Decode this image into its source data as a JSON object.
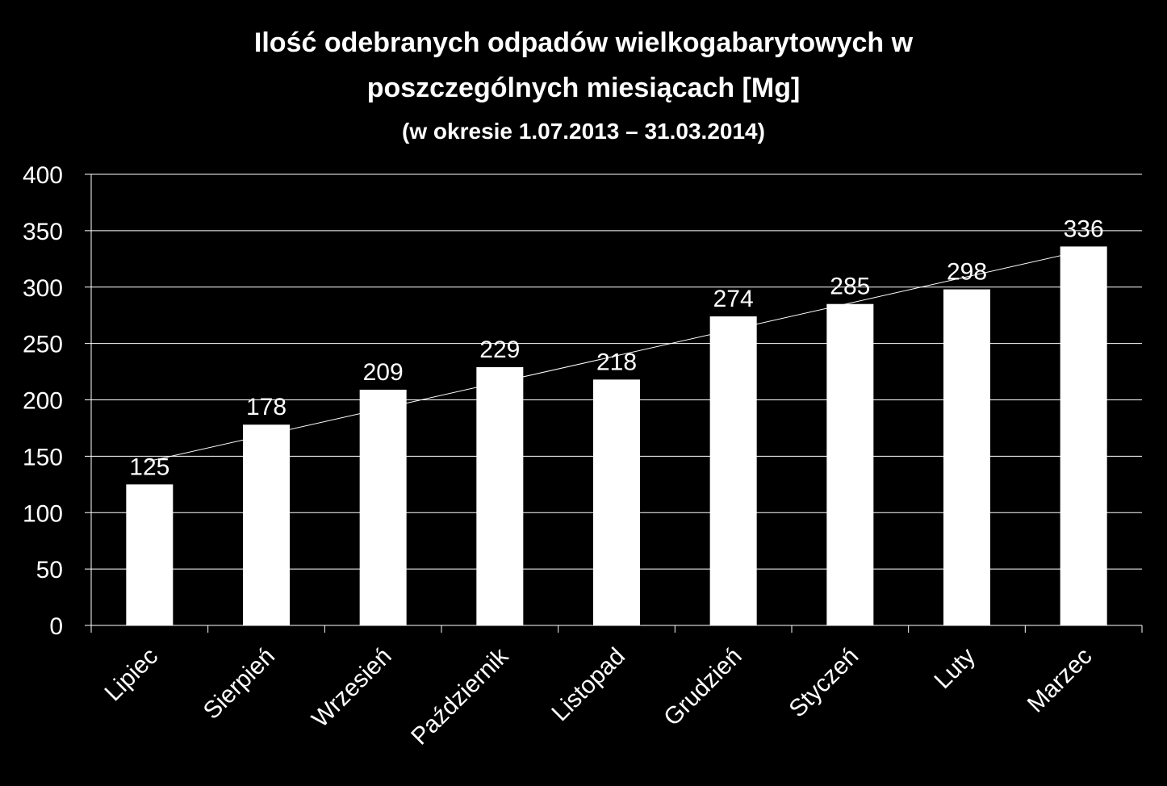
{
  "chart_data": {
    "type": "bar",
    "title_line1": "Ilość odebranych odpadów wielkogabarytowych w",
    "title_line2": "poszczególnych miesiącach [Mg]",
    "subtitle": "(w okresie 1.07.2013 – 31.03.2014)",
    "categories": [
      "Lipiec",
      "Sierpień",
      "Wrzesień",
      "Październik",
      "Listopad",
      "Grudzień",
      "Styczeń",
      "Luty",
      "Marzec"
    ],
    "values": [
      125,
      178,
      209,
      229,
      218,
      274,
      285,
      298,
      336
    ],
    "ylim": [
      0,
      400
    ],
    "yticks": [
      0,
      50,
      100,
      150,
      200,
      250,
      300,
      350,
      400
    ],
    "grid": true,
    "data_labels": true,
    "trendline": "linear",
    "colors": {
      "background": "#000000",
      "bar": "#ffffff",
      "text": "#ffffff",
      "grid": "#ffffff"
    }
  }
}
